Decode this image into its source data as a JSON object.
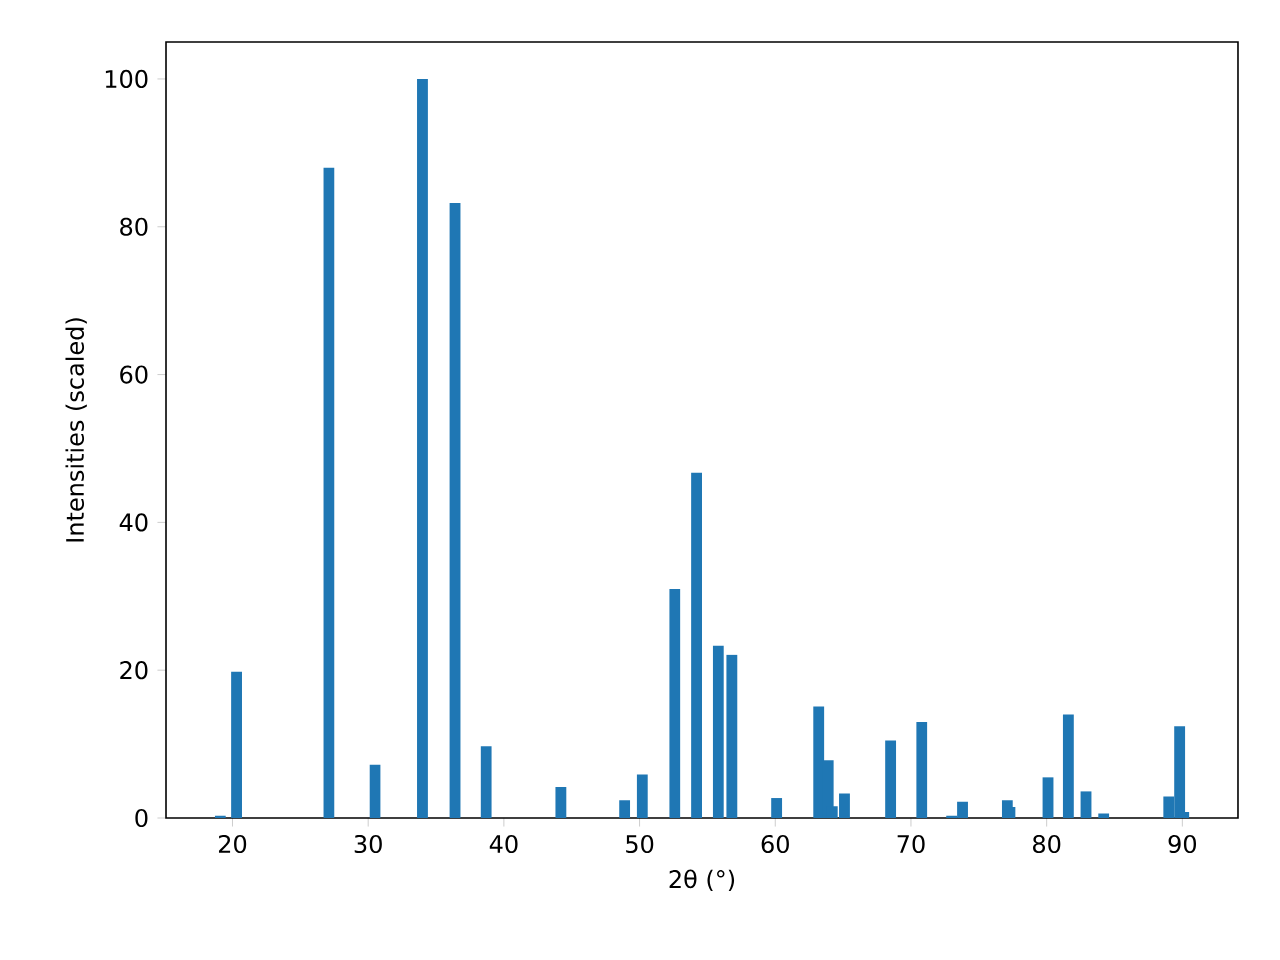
{
  "chart_data": {
    "type": "bar",
    "xlabel": "2θ (°)",
    "ylabel": "Intensities (scaled)",
    "x": [
      19.1,
      20.3,
      27.1,
      30.5,
      34.0,
      36.4,
      38.7,
      44.2,
      48.9,
      50.2,
      52.6,
      54.2,
      55.8,
      56.8,
      60.1,
      63.2,
      63.9,
      64.2,
      65.1,
      68.5,
      70.8,
      73.0,
      73.8,
      77.1,
      77.3,
      80.1,
      81.6,
      82.9,
      84.2,
      89.0,
      89.8,
      90.1
    ],
    "values": [
      0.3,
      19.8,
      88,
      7.2,
      100,
      83.2,
      9.7,
      4.2,
      2.4,
      5.9,
      31,
      46.7,
      23.3,
      22.1,
      2.7,
      15.1,
      7.8,
      1.6,
      3.3,
      10.5,
      13,
      0.3,
      2.2,
      2.4,
      1.5,
      5.5,
      14,
      3.6,
      0.6,
      2.9,
      12.4,
      0.8
    ],
    "color": "#1f77b4",
    "xlim": [
      15.1,
      94.1
    ],
    "ylim": [
      0,
      105
    ],
    "xticks": [
      20,
      30,
      40,
      50,
      60,
      70,
      80,
      90
    ],
    "yticks": [
      0,
      20,
      40,
      60,
      80,
      100
    ],
    "grid": false
  }
}
